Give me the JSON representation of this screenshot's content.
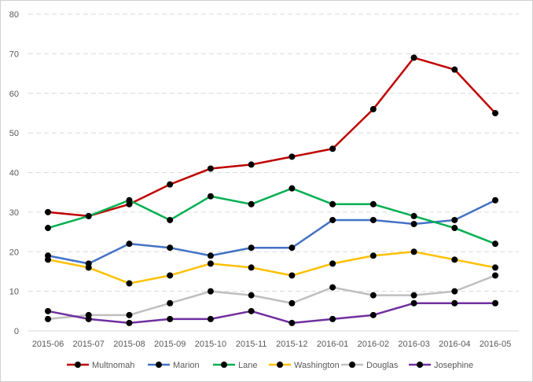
{
  "chart_data": {
    "type": "line",
    "title": "",
    "xlabel": "",
    "ylabel": "",
    "ylim": [
      0,
      80
    ],
    "yticks": [
      0,
      10,
      20,
      30,
      40,
      50,
      60,
      70,
      80
    ],
    "grid": "horizontal dashed",
    "legend_position": "bottom",
    "categories": [
      "2015-06",
      "2015-07",
      "2015-08",
      "2015-09",
      "2015-10",
      "2015-11",
      "2015-12",
      "2016-01",
      "2016-02",
      "2016-03",
      "2016-04",
      "2016-05"
    ],
    "series": [
      {
        "name": "Multnomah",
        "color": "#c00000",
        "values": [
          30,
          29,
          32,
          37,
          41,
          42,
          44,
          46,
          56,
          69,
          66,
          55
        ]
      },
      {
        "name": "Marion",
        "color": "#4472c4",
        "values": [
          19,
          17,
          22,
          21,
          19,
          21,
          21,
          28,
          28,
          27,
          28,
          33
        ]
      },
      {
        "name": "Lane",
        "color": "#00b050",
        "values": [
          26,
          29,
          33,
          28,
          34,
          32,
          36,
          32,
          32,
          29,
          26,
          22
        ]
      },
      {
        "name": "Washington",
        "color": "#ffc000",
        "values": [
          18,
          16,
          12,
          14,
          17,
          16,
          14,
          17,
          19,
          20,
          18,
          16
        ]
      },
      {
        "name": "Douglas",
        "color": "#bfbfbf",
        "values": [
          3,
          4,
          4,
          7,
          10,
          9,
          7,
          11,
          9,
          9,
          10,
          14
        ]
      },
      {
        "name": "Josephine",
        "color": "#7030a0",
        "values": [
          5,
          3,
          2,
          3,
          3,
          5,
          2,
          3,
          4,
          7,
          7,
          7
        ]
      }
    ]
  }
}
